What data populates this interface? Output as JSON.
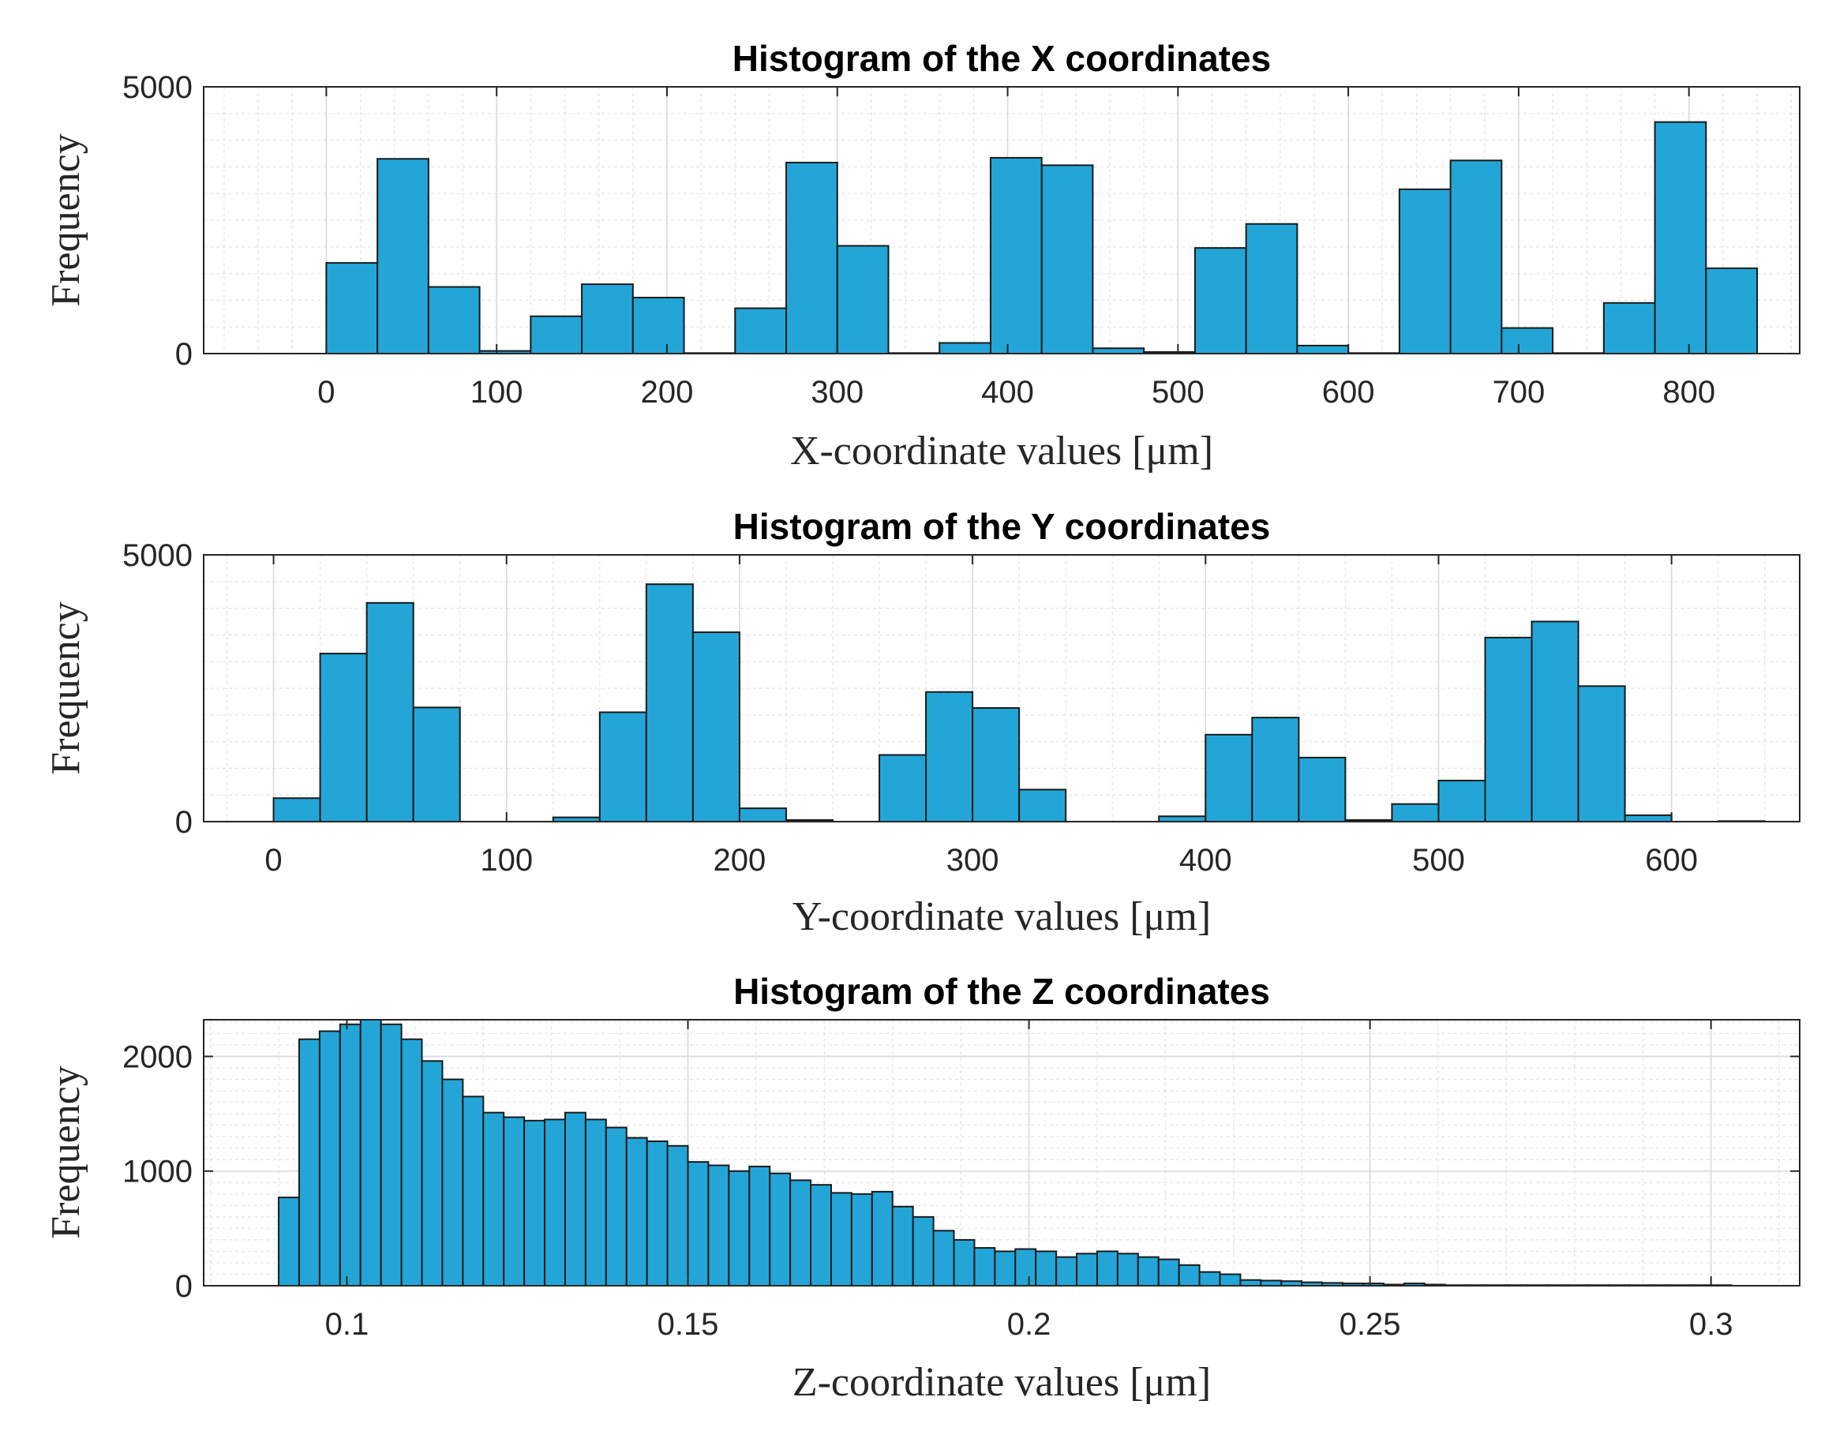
{
  "chart_data": [
    {
      "type": "bar",
      "title": "Histogram of the X coordinates",
      "xlabel": "X-coordinate values [μm]",
      "ylabel": "Frequency",
      "xlim": [
        -72,
        865
      ],
      "ylim": [
        0,
        5000
      ],
      "xticks": [
        0,
        100,
        200,
        300,
        400,
        500,
        600,
        700,
        800
      ],
      "yticks": [
        0,
        5000
      ],
      "yminor_step": 500,
      "bin_start": 0,
      "bin_width": 30,
      "values": [
        1700,
        3650,
        1250,
        50,
        700,
        1300,
        1050,
        10,
        850,
        3580,
        2020,
        10,
        200,
        3670,
        3530,
        100,
        30,
        1980,
        2430,
        150,
        10,
        3080,
        3620,
        480,
        10,
        950,
        4340,
        1600
      ]
    },
    {
      "type": "bar",
      "title": "Histogram of the Y coordinates",
      "xlabel": "Y-coordinate values [μm]",
      "ylabel": "Frequency",
      "xlim": [
        -30,
        655
      ],
      "ylim": [
        0,
        5000
      ],
      "xticks": [
        0,
        100,
        200,
        300,
        400,
        500,
        600
      ],
      "yticks": [
        0,
        5000
      ],
      "yminor_step": 500,
      "bin_start": 0,
      "bin_width": 20,
      "values": [
        440,
        3150,
        4100,
        2140,
        0,
        0,
        80,
        2050,
        4450,
        3550,
        250,
        30,
        0,
        1250,
        2430,
        2130,
        600,
        0,
        0,
        100,
        1630,
        1950,
        1200,
        30,
        330,
        770,
        3450,
        3750,
        2540,
        120,
        0,
        10
      ]
    },
    {
      "type": "bar",
      "title": "Histogram of the Z coordinates",
      "xlabel": "Z-coordinate values [μm]",
      "ylabel": "Frequency",
      "xlim": [
        0.079,
        0.313
      ],
      "ylim": [
        0,
        2320
      ],
      "xticks": [
        0.1,
        0.15,
        0.2,
        0.25,
        0.3
      ],
      "yticks": [
        0,
        1000,
        2000
      ],
      "yminor_step": 100,
      "bin_start": 0.09,
      "bin_width": 0.003,
      "values": [
        770,
        2150,
        2220,
        2280,
        2320,
        2280,
        2150,
        1960,
        1800,
        1650,
        1510,
        1470,
        1440,
        1450,
        1510,
        1450,
        1380,
        1290,
        1260,
        1220,
        1080,
        1050,
        1000,
        1040,
        980,
        920,
        880,
        810,
        800,
        820,
        690,
        600,
        480,
        400,
        330,
        300,
        320,
        300,
        250,
        280,
        300,
        280,
        250,
        230,
        180,
        120,
        100,
        50,
        45,
        40,
        30,
        25,
        20,
        20,
        10,
        20,
        10,
        5,
        5,
        5,
        5,
        5,
        5,
        5,
        5,
        5,
        5,
        5,
        5,
        5,
        5
      ]
    }
  ],
  "colors": {
    "bar_fill": "#23a6d7",
    "bar_edge": "#1a1a1a"
  }
}
